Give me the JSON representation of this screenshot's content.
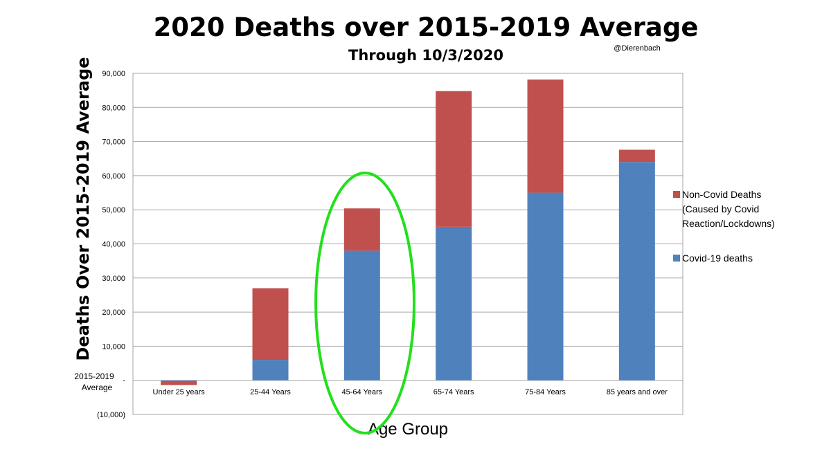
{
  "chart_data": {
    "type": "bar",
    "stacked": true,
    "title": "2020 Deaths over 2015-2019 Average",
    "subtitle": "Through 10/3/2020",
    "credit": "@Dierenbach",
    "xlabel": "Age Group",
    "ylabel": "Deaths Over 2015-2019 Average",
    "ylim": [
      -10000,
      90000
    ],
    "yticks": [
      {
        "value": 90000,
        "label": "90,000"
      },
      {
        "value": 80000,
        "label": "80,000"
      },
      {
        "value": 70000,
        "label": "70,000"
      },
      {
        "value": 60000,
        "label": "60,000"
      },
      {
        "value": 50000,
        "label": "50,000"
      },
      {
        "value": 40000,
        "label": "40,000"
      },
      {
        "value": 30000,
        "label": "30,000"
      },
      {
        "value": 20000,
        "label": "20,000"
      },
      {
        "value": 10000,
        "label": "10,000"
      },
      {
        "value": 0,
        "label": "-"
      },
      {
        "value": -10000,
        "label": "(10,000)"
      }
    ],
    "baseline_label": [
      "2015-2019",
      "Average"
    ],
    "grid": true,
    "legend_position": "right",
    "categories": [
      "Under 25 years",
      "25-44 Years",
      "45-64 Years",
      "65-74 Years",
      "75-84 Years",
      "85 years and over"
    ],
    "series": [
      {
        "name": "Covid-19 deaths",
        "color": "#4f81bd",
        "values": [
          -200,
          6000,
          38000,
          45000,
          55000,
          64000
        ]
      },
      {
        "name": "Non-Covid Deaths (Caused by Covid Reaction/Lockdowns)",
        "legend_lines": [
          "Non-Covid Deaths",
          "(Caused by Covid",
          "Reaction/Lockdowns)"
        ],
        "color": "#c0504d",
        "values": [
          -1200,
          21000,
          12400,
          39800,
          33200,
          3600
        ]
      }
    ],
    "annotations": [
      {
        "type": "ellipse",
        "target_category": "45-64 Years",
        "color": "#22e01c"
      }
    ]
  }
}
